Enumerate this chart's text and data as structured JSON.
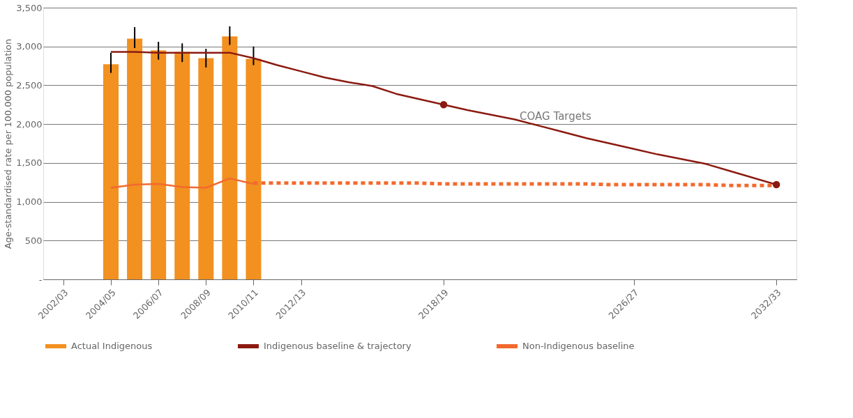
{
  "chart_data": {
    "type": "bar",
    "ylabel": "Age-standardised rate per 100,000 population",
    "categories": [
      "2002/03",
      null,
      "2004/05",
      null,
      "2006/07",
      null,
      "2008/09",
      null,
      "2010/11",
      null,
      "2012/13",
      null,
      null,
      null,
      null,
      null,
      "2018/19",
      null,
      null,
      null,
      null,
      null,
      null,
      null,
      "2026/27",
      null,
      null,
      null,
      null,
      null,
      "2032/33"
    ],
    "ylim": [
      0,
      3500
    ],
    "yticks": [
      {
        "value": 0,
        "label": "-"
      },
      500,
      {
        "value": 1000,
        "label": "1,000"
      },
      {
        "value": 1500,
        "label": "1,500"
      },
      {
        "value": 2000,
        "label": "2,000"
      },
      {
        "value": 2500,
        "label": "2,500"
      },
      {
        "value": 3000,
        "label": "3,000"
      },
      {
        "value": 3500,
        "label": "3,500"
      }
    ],
    "grid": "y",
    "legend": "bottom",
    "series": [
      {
        "name": "Actual Indigenous",
        "color": "#f29020",
        "values": [
          null,
          null,
          2770,
          3100,
          2950,
          2930,
          2850,
          3130,
          2840,
          null,
          null,
          null,
          null,
          null,
          null,
          null,
          null,
          null,
          null,
          null,
          null,
          null,
          null,
          null,
          null,
          null,
          null,
          null,
          null,
          null,
          null
        ],
        "errors": [
          null,
          null,
          [
            2660,
            2920
          ],
          [
            2980,
            3250
          ],
          [
            2830,
            3060
          ],
          [
            2800,
            3040
          ],
          [
            2730,
            2970
          ],
          [
            3020,
            3260
          ],
          [
            2760,
            3000
          ],
          null,
          null,
          null,
          null,
          null,
          null,
          null,
          null,
          null,
          null,
          null,
          null,
          null,
          null,
          null,
          null,
          null,
          null,
          null,
          null,
          null,
          null
        ]
      },
      {
        "name": "Indigenous baseline & trajectory",
        "type": "line",
        "color": "#8b1a10",
        "line_style": "solid",
        "values": [
          null,
          null,
          2930,
          2930,
          2920,
          2920,
          2920,
          2920,
          2850,
          2760,
          2680,
          2600,
          2540,
          2490,
          2390,
          2320,
          2250,
          2180,
          2120,
          2060,
          1980,
          1900,
          1820,
          1750,
          1680,
          1610,
          1550,
          1490,
          1400,
          1310,
          1220
        ]
      },
      {
        "type": "line",
        "color": "#f26a2e",
        "line_style": "solid",
        "values": [
          null,
          null,
          1180,
          1220,
          1230,
          1190,
          1180,
          1300,
          1230,
          null,
          null,
          null,
          null,
          null,
          null,
          null,
          null,
          null,
          null,
          null,
          null,
          null,
          null,
          null,
          null,
          null,
          null,
          null,
          null,
          null,
          null
        ]
      },
      {
        "name": "Non-Indigenous baseline",
        "type": "line",
        "color": "#f26a2e",
        "line_style": "dashed",
        "values": [
          null,
          null,
          null,
          null,
          null,
          null,
          null,
          null,
          1240,
          1240,
          1240,
          1240,
          1240,
          1240,
          1240,
          1240,
          1230,
          1230,
          1230,
          1230,
          1230,
          1230,
          1230,
          1220,
          1220,
          1220,
          1220,
          1220,
          1210,
          1210,
          1210
        ]
      },
      {
        "type": "scatter",
        "color": "#8b1a10",
        "marker": "circle",
        "values": [
          null,
          null,
          null,
          null,
          null,
          null,
          null,
          null,
          null,
          null,
          null,
          null,
          null,
          null,
          null,
          null,
          2250,
          null,
          null,
          null,
          null,
          null,
          null,
          null,
          null,
          null,
          null,
          null,
          null,
          null,
          1220
        ]
      }
    ],
    "annotations": [
      "COAG Targets"
    ]
  }
}
